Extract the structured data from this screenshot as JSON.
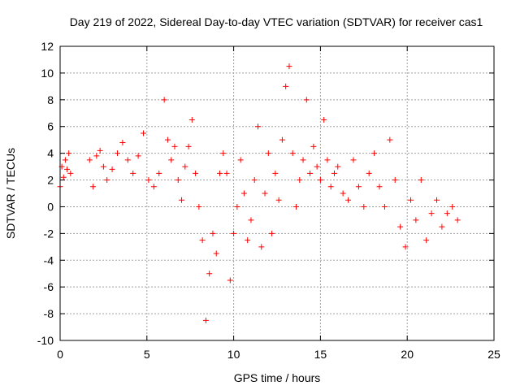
{
  "chart_data": {
    "type": "scatter",
    "title": "Day 219 of 2022, Sidereal Day-to-day VTEC variation (SDTVAR) for receiver cas1",
    "xlabel": "GPS time / hours",
    "ylabel": "SDTVAR / TECUs",
    "xlim": [
      0,
      25
    ],
    "ylim": [
      -10,
      12
    ],
    "x_ticks": [
      0,
      5,
      10,
      15,
      20,
      25
    ],
    "y_ticks": [
      -10,
      -8,
      -6,
      -4,
      -2,
      0,
      2,
      4,
      6,
      8,
      10,
      12
    ],
    "grid": true,
    "marker": "+",
    "colors": {
      "points": "#ff0000",
      "grid": "#a0a0a0",
      "axis": "#000000"
    },
    "series": [
      {
        "name": "SDTVAR",
        "x": [
          0.0,
          0.1,
          0.2,
          0.3,
          0.4,
          0.5,
          0.6,
          1.7,
          1.9,
          2.1,
          2.3,
          2.5,
          2.7,
          3.0,
          3.3,
          3.6,
          3.9,
          4.2,
          4.5,
          4.8,
          5.1,
          5.4,
          5.7,
          6.0,
          6.2,
          6.4,
          6.6,
          6.8,
          7.0,
          7.2,
          7.4,
          7.6,
          7.8,
          8.0,
          8.2,
          8.4,
          8.6,
          8.8,
          9.0,
          9.2,
          9.4,
          9.6,
          9.8,
          10.0,
          10.2,
          10.4,
          10.6,
          10.8,
          11.0,
          11.2,
          11.4,
          11.6,
          11.8,
          12.0,
          12.2,
          12.4,
          12.6,
          12.8,
          13.0,
          13.2,
          13.4,
          13.6,
          13.8,
          14.0,
          14.2,
          14.4,
          14.6,
          14.8,
          15.0,
          15.2,
          15.4,
          15.6,
          15.8,
          16.0,
          16.3,
          16.6,
          16.9,
          17.2,
          17.5,
          17.8,
          18.1,
          18.4,
          18.7,
          19.0,
          19.3,
          19.6,
          19.9,
          20.2,
          20.5,
          20.8,
          21.1,
          21.4,
          21.7,
          22.0,
          22.3,
          22.6,
          22.9
        ],
        "values": [
          1.5,
          3.0,
          2.2,
          3.5,
          2.8,
          4.0,
          2.5,
          3.5,
          1.5,
          3.8,
          4.2,
          3.0,
          2.0,
          2.8,
          4.0,
          4.8,
          3.5,
          2.5,
          3.8,
          5.5,
          2.0,
          1.5,
          2.5,
          8.0,
          5.0,
          3.5,
          4.5,
          2.0,
          0.5,
          3.0,
          4.5,
          6.5,
          2.5,
          0.0,
          -2.5,
          -8.5,
          -5.0,
          -2.0,
          -3.5,
          2.5,
          4.0,
          2.5,
          -5.5,
          -2.0,
          0.0,
          3.5,
          1.0,
          -2.5,
          -1.0,
          2.0,
          6.0,
          -3.0,
          1.0,
          4.0,
          -2.0,
          2.5,
          0.5,
          5.0,
          9.0,
          10.5,
          4.0,
          0.0,
          2.0,
          3.5,
          8.0,
          2.5,
          4.5,
          3.0,
          2.0,
          6.5,
          3.5,
          1.5,
          2.5,
          3.0,
          1.0,
          0.5,
          3.5,
          1.5,
          0.0,
          2.5,
          4.0,
          1.5,
          0.0,
          5.0,
          2.0,
          -1.5,
          -3.0,
          0.5,
          -1.0,
          2.0,
          -2.5,
          -0.5,
          0.5,
          -1.5,
          -0.5,
          0.0,
          -1.0
        ]
      }
    ]
  }
}
